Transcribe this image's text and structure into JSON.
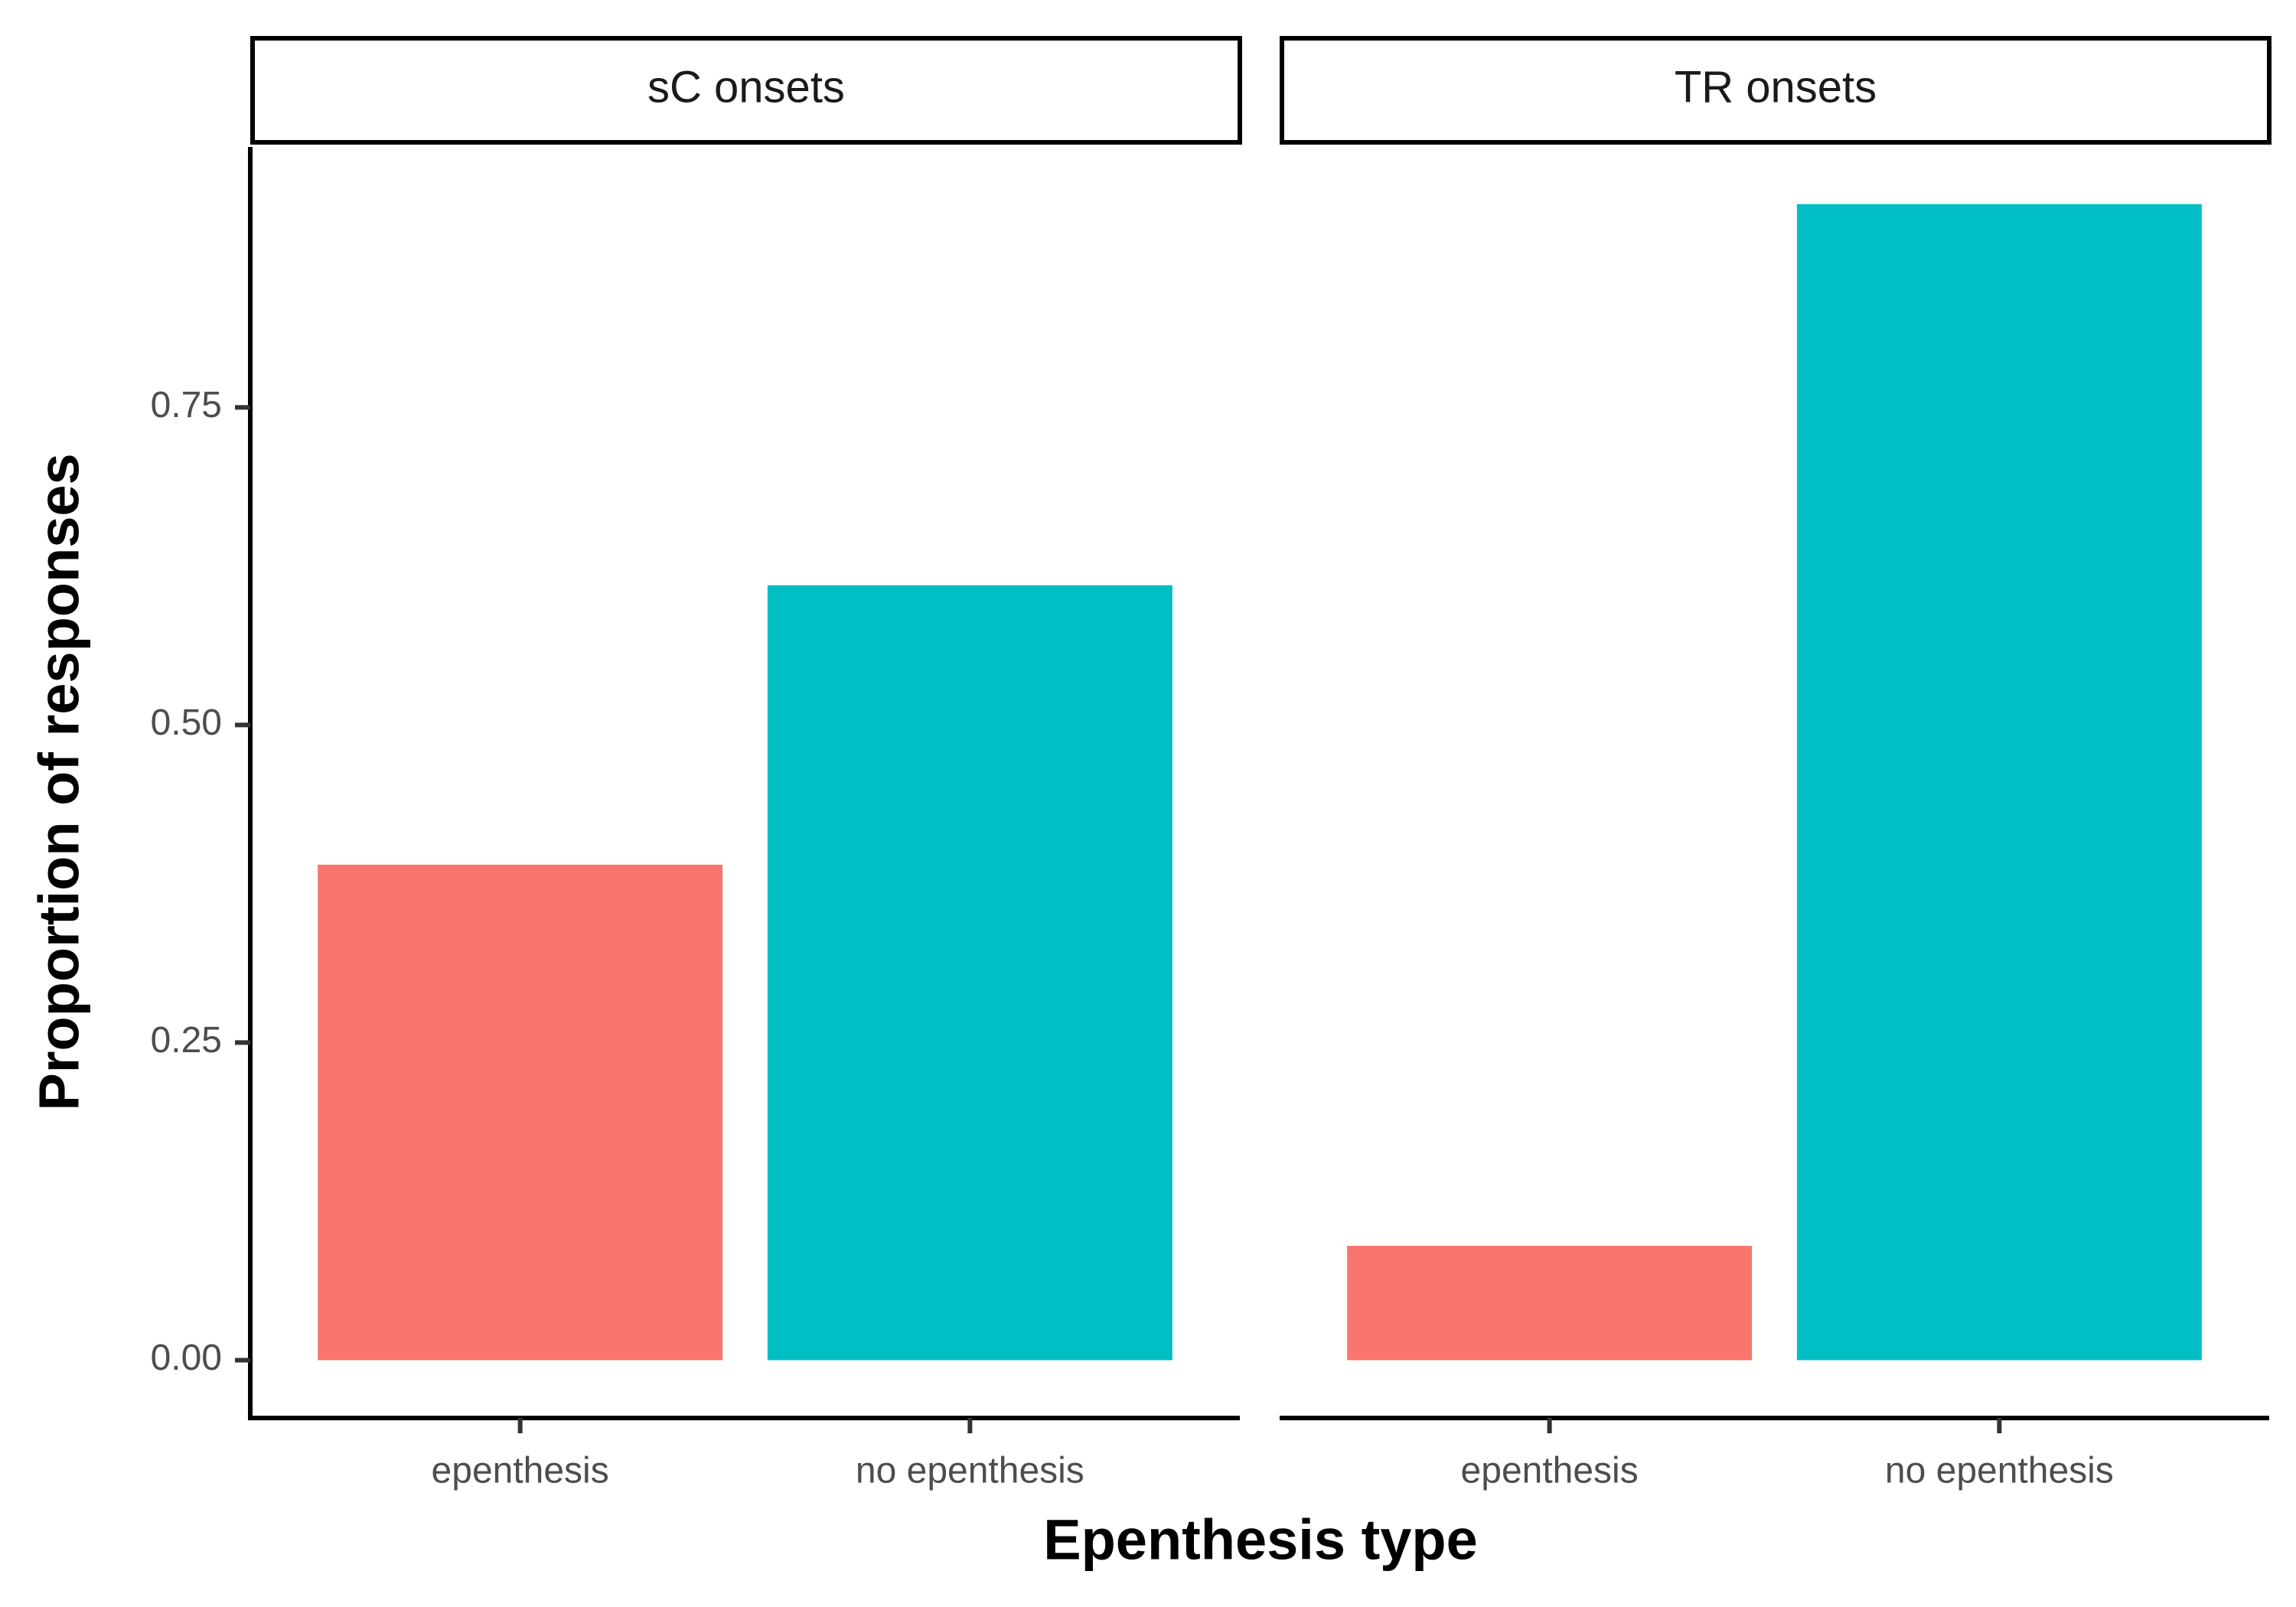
{
  "chart_data": {
    "type": "bar",
    "xlabel": "Epenthesis type",
    "ylabel": "Proportion of responses",
    "ylim": [
      -0.0455,
      0.955
    ],
    "yticks": [
      0.0,
      0.25,
      0.5,
      0.75
    ],
    "ytick_labels": [
      "0.00",
      "0.25",
      "0.50",
      "0.75"
    ],
    "grid": false,
    "legend": "none",
    "categories": [
      "epenthesis",
      "no epenthesis"
    ],
    "category_colors": [
      "#F8766D",
      "#00BFC4"
    ],
    "facets": [
      {
        "label": "sC onsets",
        "values": [
          0.39,
          0.61
        ]
      },
      {
        "label": "TR onsets",
        "values": [
          0.09,
          0.91
        ]
      }
    ]
  }
}
